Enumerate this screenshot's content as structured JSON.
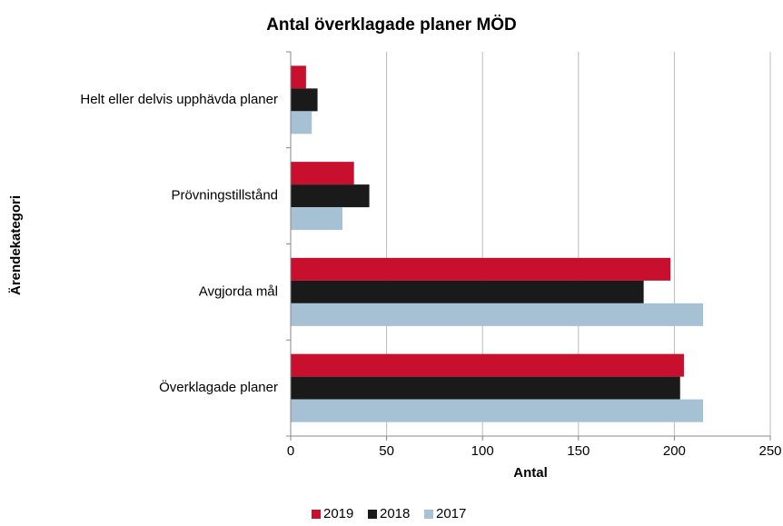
{
  "chart_data": {
    "type": "barh",
    "title": "Antal överklagade planer MÖD",
    "xlabel": "Antal",
    "ylabel": "Ärendekategori",
    "categories": [
      "Helt eller delvis upphävda planer",
      "Prövningstillstånd",
      "Avgjorda mål",
      "Överklagade planer"
    ],
    "series": [
      {
        "name": "2019",
        "color": "#c8102e",
        "values": [
          8,
          33,
          198,
          205
        ]
      },
      {
        "name": "2018",
        "color": "#1a1a1a",
        "values": [
          14,
          41,
          184,
          203
        ]
      },
      {
        "name": "2017",
        "color": "#a5c1d3",
        "values": [
          11,
          27,
          215,
          215
        ]
      }
    ],
    "xlim": [
      0,
      250
    ],
    "xticks": [
      0,
      50,
      100,
      150,
      200,
      250
    ],
    "grid": true,
    "legend": "bottom"
  }
}
